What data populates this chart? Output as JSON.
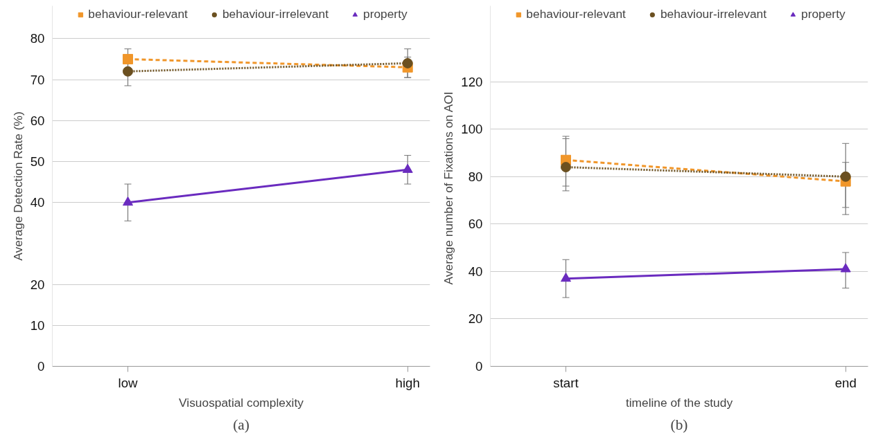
{
  "chart_data": [
    {
      "type": "line",
      "xlabel": "Visuospatial complexity",
      "ylabel": "Average Detection Rate (%)",
      "categories": [
        "low",
        "high"
      ],
      "ylim": [
        0,
        88
      ],
      "yticks": [
        0,
        10,
        20,
        40,
        50,
        60,
        70,
        80
      ],
      "grid": "y",
      "legend": "top",
      "annotations": [
        "(a)"
      ],
      "series": [
        {
          "name": "behaviour-relevant",
          "color": "#f0962a",
          "values": [
            75,
            73
          ],
          "errors": [
            2.5,
            2.5
          ],
          "marker": "square",
          "line_style": "dashed"
        },
        {
          "name": "behaviour-irrelevant",
          "color": "#6b5020",
          "values": [
            72,
            74
          ],
          "errors": [
            3.5,
            3.5
          ],
          "marker": "circle",
          "line_style": "dotted"
        },
        {
          "name": "property",
          "color": "#6a2bbf",
          "values": [
            40,
            48
          ],
          "errors": [
            4.5,
            3.5
          ],
          "marker": "triangle",
          "line_style": "solid"
        }
      ]
    },
    {
      "type": "line",
      "xlabel": "timeline of the study",
      "ylabel": "Average number of  Fixations on AOI",
      "categories": [
        "start",
        "end"
      ],
      "ylim": [
        0,
        152
      ],
      "yticks": [
        0,
        20,
        40,
        60,
        80,
        100,
        120
      ],
      "grid": "y",
      "legend": "top",
      "annotations": [
        "(b)"
      ],
      "series": [
        {
          "name": "behaviour-relevant",
          "color": "#f0962a",
          "values": [
            87,
            78
          ],
          "errors": [
            [
              76,
              97
            ],
            [
              64,
              94
            ]
          ],
          "marker": "square",
          "line_style": "dashed"
        },
        {
          "name": "behaviour-irrelevant",
          "color": "#6b5020",
          "values": [
            84,
            80
          ],
          "errors": [
            [
              74,
              96
            ],
            [
              67,
              86
            ]
          ],
          "marker": "circle",
          "line_style": "dotted"
        },
        {
          "name": "property",
          "color": "#6a2bbf",
          "values": [
            37,
            41
          ],
          "errors": [
            [
              29,
              45
            ],
            [
              33,
              48
            ]
          ],
          "marker": "triangle",
          "line_style": "solid"
        }
      ]
    }
  ]
}
